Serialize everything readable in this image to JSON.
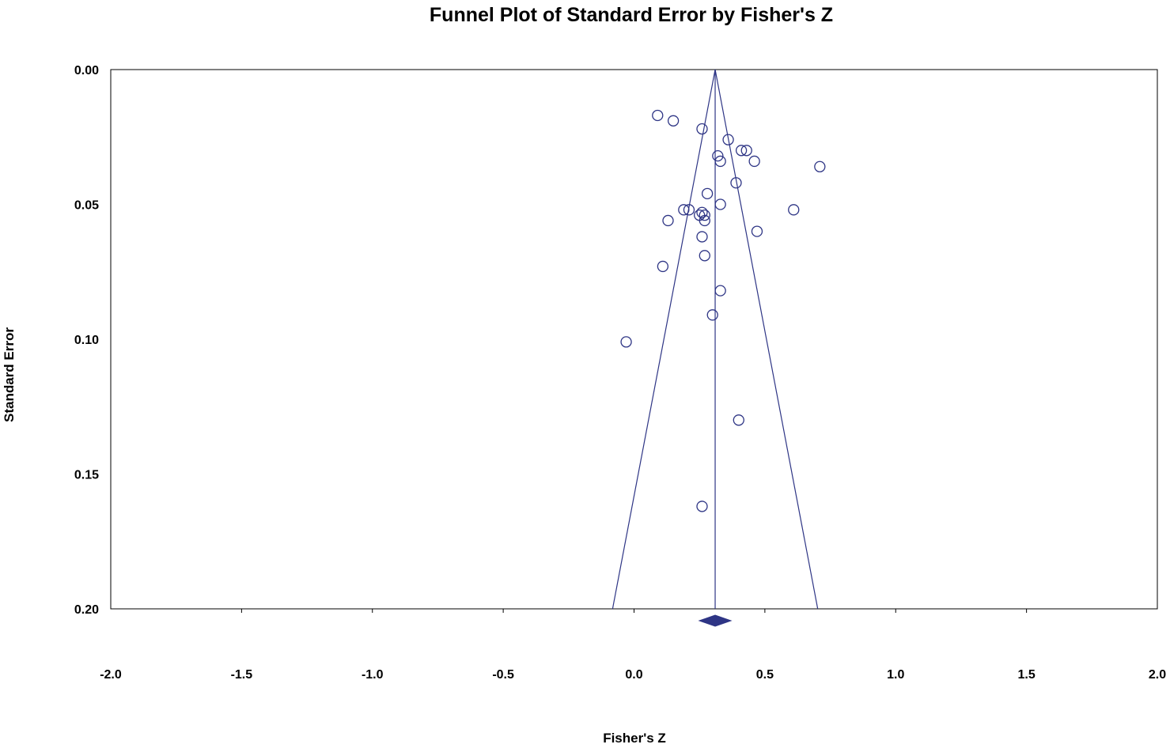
{
  "chart_data": {
    "type": "scatter",
    "title": "Funnel Plot of Standard Error by Fisher's Z",
    "xlabel": "Fisher's Z",
    "ylabel": "Standard Error",
    "xlim": [
      -2.0,
      2.0
    ],
    "ylim": [
      0.2,
      0.0
    ],
    "y_axis_inverted": true,
    "x_ticks": [
      "-2.0",
      "-1.5",
      "-1.0",
      "-0.5",
      "0.0",
      "0.5",
      "1.0",
      "1.5",
      "2.0"
    ],
    "y_ticks": [
      "0.00",
      "0.05",
      "0.10",
      "0.15",
      "0.20"
    ],
    "grid": false,
    "legend": "none",
    "summary_effect": 0.31,
    "funnel_base_z": 1.96,
    "marker_color": "#2E3585",
    "line_color": "#2E3585",
    "points": [
      {
        "x": 0.09,
        "y": 0.017
      },
      {
        "x": 0.15,
        "y": 0.019
      },
      {
        "x": 0.26,
        "y": 0.022
      },
      {
        "x": 0.36,
        "y": 0.026
      },
      {
        "x": 0.32,
        "y": 0.032
      },
      {
        "x": 0.41,
        "y": 0.03
      },
      {
        "x": 0.43,
        "y": 0.03
      },
      {
        "x": 0.33,
        "y": 0.034
      },
      {
        "x": 0.46,
        "y": 0.034
      },
      {
        "x": 0.71,
        "y": 0.036
      },
      {
        "x": 0.39,
        "y": 0.042
      },
      {
        "x": 0.28,
        "y": 0.046
      },
      {
        "x": 0.33,
        "y": 0.05
      },
      {
        "x": 0.19,
        "y": 0.052
      },
      {
        "x": 0.21,
        "y": 0.052
      },
      {
        "x": 0.61,
        "y": 0.052
      },
      {
        "x": 0.26,
        "y": 0.053
      },
      {
        "x": 0.27,
        "y": 0.054
      },
      {
        "x": 0.25,
        "y": 0.054
      },
      {
        "x": 0.27,
        "y": 0.056
      },
      {
        "x": 0.13,
        "y": 0.056
      },
      {
        "x": 0.47,
        "y": 0.06
      },
      {
        "x": 0.26,
        "y": 0.062
      },
      {
        "x": 0.27,
        "y": 0.069
      },
      {
        "x": 0.11,
        "y": 0.073
      },
      {
        "x": 0.33,
        "y": 0.082
      },
      {
        "x": 0.3,
        "y": 0.091
      },
      {
        "x": -0.03,
        "y": 0.101
      },
      {
        "x": 0.4,
        "y": 0.13
      },
      {
        "x": 0.26,
        "y": 0.162
      }
    ]
  }
}
